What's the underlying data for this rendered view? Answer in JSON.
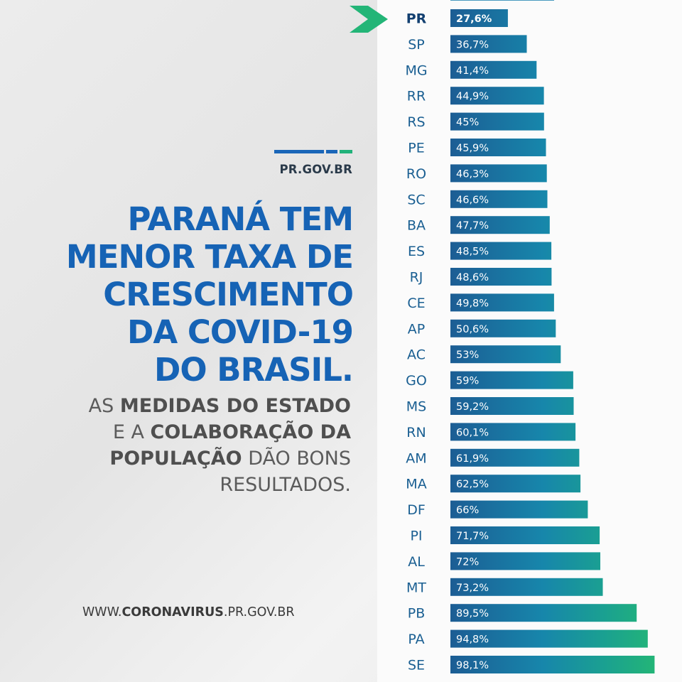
{
  "logo": {
    "text": "PR.GOV.BR",
    "colors": [
      "#1a66b8",
      "#1a66b8",
      "#21b27a"
    ]
  },
  "headline": {
    "lines": [
      "PARANÁ TEM",
      "MENOR TAXA DE",
      "CRESCIMENTO",
      "DA COVID-19",
      "DO BRASIL."
    ]
  },
  "subhead": {
    "lines": [
      [
        {
          "t": "AS ",
          "b": false
        },
        {
          "t": "MEDIDAS DO ESTADO",
          "b": true
        }
      ],
      [
        {
          "t": "E A ",
          "b": false
        },
        {
          "t": "COLABORAÇÃO DA",
          "b": true
        }
      ],
      [
        {
          "t": "POPULAÇÃO",
          "b": true
        },
        {
          "t": " DÃO BONS",
          "b": false
        }
      ],
      [
        {
          "t": "RESULTADOS.",
          "b": false
        }
      ]
    ]
  },
  "website": [
    {
      "t": "WWW.",
      "b": false
    },
    {
      "t": "CORONAVIRUS",
      "b": true
    },
    {
      "t": ".PR.GOV.BR",
      "b": false
    }
  ],
  "colors": {
    "headline": "#1663b5",
    "bar_start": "#1c5d94",
    "bar_end": "#23b577",
    "arrow": "#23b577"
  },
  "chart_data": {
    "type": "bar",
    "orientation": "horizontal",
    "highlight": "PR",
    "categories": [
      "PR",
      "SP",
      "MG",
      "RR",
      "RS",
      "PE",
      "RO",
      "SC",
      "BA",
      "ES",
      "RJ",
      "CE",
      "AP",
      "AC",
      "GO",
      "MS",
      "RN",
      "AM",
      "MA",
      "DF",
      "PI",
      "AL",
      "MT",
      "PB",
      "PA",
      "SE"
    ],
    "values": [
      27.6,
      36.7,
      41.4,
      44.9,
      45,
      45.9,
      46.3,
      46.6,
      47.7,
      48.5,
      48.6,
      49.8,
      50.6,
      53,
      59,
      59.2,
      60.1,
      61.9,
      62.5,
      66,
      71.7,
      72,
      73.2,
      89.5,
      94.8,
      98.1
    ],
    "labels": [
      "27,6%",
      "36,7%",
      "41,4%",
      "44,9%",
      "45%",
      "45,9%",
      "46,3%",
      "46,6%",
      "47,7%",
      "48,5%",
      "48,6%",
      "49,8%",
      "50,6%",
      "53%",
      "59%",
      "59,2%",
      "60,1%",
      "61,9%",
      "62,5%",
      "66%",
      "71,7%",
      "72%",
      "73,2%",
      "89,5%",
      "94,8%",
      "98,1%"
    ],
    "xlim": [
      0,
      100
    ]
  }
}
